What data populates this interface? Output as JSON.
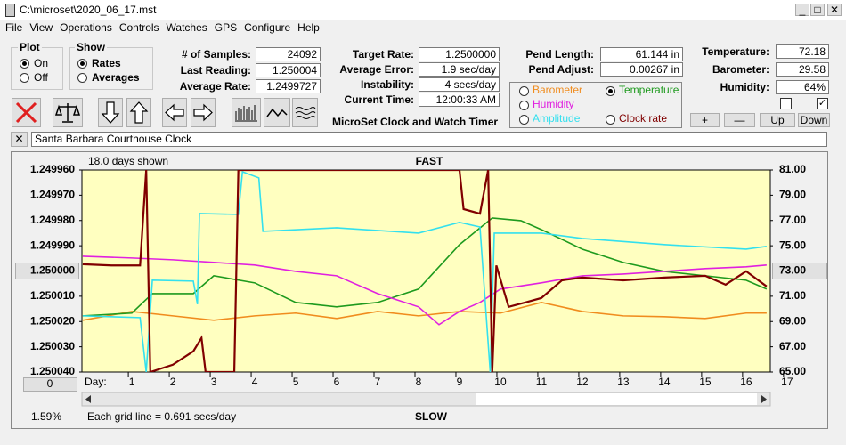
{
  "window": {
    "title": "C:\\microset\\2020_06_17.mst"
  },
  "menu": [
    "File",
    "View",
    "Operations",
    "Controls",
    "Watches",
    "GPS",
    "Configure",
    "Help"
  ],
  "plot_group": {
    "label": "Plot",
    "options": [
      "On",
      "Off"
    ],
    "selected": 0
  },
  "show_group": {
    "label": "Show",
    "options": [
      "Rates",
      "Averages"
    ],
    "selected": 0
  },
  "stats_left": [
    {
      "label": "# of Samples:",
      "value": "24092"
    },
    {
      "label": "Last Reading:",
      "value": "1.250004"
    },
    {
      "label": "Average Rate:",
      "value": "1.2499727"
    }
  ],
  "stats_middle": [
    {
      "label": "Target Rate:",
      "value": "1.2500000"
    },
    {
      "label": "Average Error:",
      "value": "1.9 sec/day"
    },
    {
      "label": "Instability:",
      "value": "4 secs/day"
    },
    {
      "label": "Current Time:",
      "value": "12:00:33 AM"
    }
  ],
  "app_title": "MicroSet Clock and Watch Timer",
  "pendulum": [
    {
      "label": "Pend Length:",
      "value": "61.144 in"
    },
    {
      "label": "Pend Adjust:",
      "value": "0.00267 in"
    }
  ],
  "sensors": [
    {
      "label": "Temperature:",
      "value": "72.18"
    },
    {
      "label": "Barometer:",
      "value": "29.58"
    },
    {
      "label": "Humidity:",
      "value": "64%"
    }
  ],
  "scale_buttons": [
    "+",
    "—",
    "Up",
    "Down"
  ],
  "clock_name": "Santa Barbara Courthouse Clock",
  "chart": {
    "days_shown": "18.0 days shown",
    "top_label": "FAST",
    "bottom_label": "SLOW",
    "grid_note": "Each grid line = 0.691 secs/day",
    "percent": "1.59%",
    "offset_button": "0",
    "day_label": "Day:",
    "selected_series": "Temperature",
    "xlim": [
      -0.22,
      16.59
    ],
    "xticks": [
      1,
      2,
      3,
      4,
      5,
      6,
      7,
      8,
      9,
      10,
      11,
      12,
      13,
      14,
      15,
      16,
      17
    ],
    "ylim": [
      1.24996,
      1.25004
    ],
    "yticks": [
      {
        "value": 1.24996,
        "label": "1.249960"
      },
      {
        "value": 1.24997,
        "label": "1.249970"
      },
      {
        "value": 1.24998,
        "label": "1.249980"
      },
      {
        "value": 1.24999,
        "label": "1.249990"
      },
      {
        "value": 1.25,
        "label": "1.250000"
      },
      {
        "value": 1.25001,
        "label": "1.250010"
      },
      {
        "value": 1.25002,
        "label": "1.250020"
      },
      {
        "value": 1.25003,
        "label": "1.250030"
      },
      {
        "value": 1.25004,
        "label": "1.250040"
      }
    ],
    "y2lim": [
      65,
      81
    ],
    "y2ticks": [
      {
        "value": 81,
        "label": "81.00"
      },
      {
        "value": 79,
        "label": "79.00"
      },
      {
        "value": 77,
        "label": "77.00"
      },
      {
        "value": 75,
        "label": "75.00"
      },
      {
        "value": 73,
        "label": "73.00"
      },
      {
        "value": 71,
        "label": "71.00"
      },
      {
        "value": 69,
        "label": "69.00"
      },
      {
        "value": 67,
        "label": "67.00"
      },
      {
        "value": 65,
        "label": "65.00"
      }
    ],
    "series": [
      {
        "name": "Barometer",
        "color": "#f08c1e",
        "axis": "y2",
        "x": [
          -0.2,
          1,
          2,
          3,
          4,
          5,
          6,
          7,
          8,
          9,
          10,
          11,
          12,
          13,
          14,
          15,
          16,
          16.5
        ],
        "values": [
          69.1,
          69.8,
          69.45,
          69.1,
          69.45,
          69.67,
          69.24,
          69.8,
          69.45,
          69.8,
          69.67,
          70.51,
          69.8,
          69.45,
          69.38,
          69.24,
          69.67,
          69.67
        ]
      },
      {
        "name": "Temperature",
        "color": "#1e9a1e",
        "axis": "y2",
        "x": [
          -0.2,
          1,
          1.5,
          2.5,
          3,
          4,
          5,
          6,
          7,
          8,
          9,
          9.8,
          10.5,
          11,
          12,
          13,
          14,
          15,
          16,
          16.5
        ],
        "values": [
          69.45,
          69.67,
          71.21,
          71.21,
          72.62,
          72.06,
          70.51,
          70.16,
          70.51,
          71.57,
          75.09,
          77.2,
          76.99,
          76.28,
          74.73,
          73.68,
          72.97,
          72.62,
          72.27,
          71.57
        ]
      },
      {
        "name": "Humidity",
        "color": "#e020e0",
        "axis": "y2",
        "x": [
          -0.2,
          1,
          2,
          3,
          4,
          5,
          6,
          7,
          8,
          8.5,
          9,
          9.5,
          10,
          11,
          12,
          13,
          14,
          15,
          16,
          16.5
        ],
        "values": [
          74.17,
          74.03,
          73.89,
          73.68,
          73.47,
          72.97,
          72.62,
          71.21,
          70.16,
          68.75,
          69.8,
          70.51,
          71.57,
          72.06,
          72.62,
          72.76,
          72.97,
          73.19,
          73.33,
          73.47
        ]
      },
      {
        "name": "Amplitude",
        "color": "#33e0ee",
        "axis": "y2",
        "x": [
          -0.2,
          1.2,
          1.35,
          1.5,
          2.5,
          2.6,
          2.65,
          3.6,
          3.7,
          4.1,
          4.2,
          6,
          8,
          9,
          9.5,
          9.75,
          9.85,
          11,
          12,
          14,
          16,
          16.5
        ],
        "values": [
          69.45,
          69.31,
          65,
          72.27,
          72.2,
          70.37,
          77.55,
          77.48,
          80.86,
          80.37,
          76.14,
          76.42,
          76.0,
          76.85,
          76.49,
          65,
          76.0,
          76.0,
          75.58,
          75.09,
          74.73,
          74.95
        ]
      },
      {
        "name": "Clock rate",
        "color": "#800000",
        "axis": "y",
        "x": [
          -0.2,
          0.5,
          1.2,
          1.35,
          1.45,
          2,
          2.5,
          2.7,
          2.8,
          3.5,
          3.6,
          9.0,
          9.1,
          9.5,
          9.7,
          9.8,
          9.9,
          10.2,
          10.6,
          11,
          11.5,
          12,
          13,
          14,
          15,
          15.5,
          16,
          16.5
        ],
        "values": [
          1.2499973,
          1.2499978,
          1.2499978,
          1.24996,
          1.25004,
          1.2500371,
          1.2500318,
          1.2500265,
          1.25004,
          1.25004,
          1.24996,
          1.24996,
          1.2499755,
          1.2499773,
          1.24996,
          1.25004,
          1.2499978,
          1.2500142,
          1.2500125,
          1.2500107,
          1.2500037,
          1.2500026,
          1.2500037,
          1.2500026,
          1.2500019,
          1.2500054,
          1.2500001,
          1.2500061
        ]
      }
    ]
  }
}
